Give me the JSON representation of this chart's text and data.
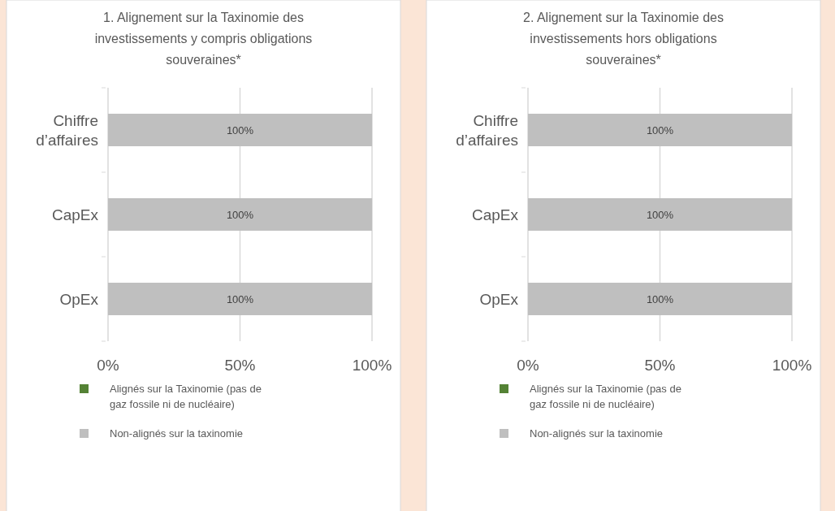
{
  "chart_data": [
    {
      "type": "bar",
      "orientation": "horizontal",
      "stacked": true,
      "title": "1. Alignement sur la Taxinomie des investissements y compris obligations souveraines*",
      "categories": [
        "Chiffre d’affaires",
        "CapEx",
        "OpEx"
      ],
      "series": [
        {
          "name": "Alignés sur la Taxinomie (pas de gaz fossile ni de nucléaire)",
          "color": "#548235",
          "values": [
            0,
            0,
            0
          ],
          "value_labels": [
            null,
            null,
            null
          ]
        },
        {
          "name": "Non-alignés sur la taxinomie",
          "color": "#bfbfbf",
          "values": [
            100,
            100,
            100
          ],
          "value_labels": [
            "100%",
            "100%",
            "100%"
          ]
        }
      ],
      "xlim": [
        0,
        100
      ],
      "xticks": [
        {
          "value": 0,
          "label": "0%"
        },
        {
          "value": 50,
          "label": "50%"
        },
        {
          "value": 100,
          "label": "100%"
        }
      ],
      "grid": "x",
      "legend": "bottom"
    },
    {
      "type": "bar",
      "orientation": "horizontal",
      "stacked": true,
      "title": "2. Alignement sur la Taxinomie des investissements hors obligations souveraines*",
      "categories": [
        "Chiffre d’affaires",
        "CapEx",
        "OpEx"
      ],
      "series": [
        {
          "name": "Alignés sur la Taxinomie (pas de gaz fossile ni de nucléaire)",
          "color": "#548235",
          "values": [
            0,
            0,
            0
          ],
          "value_labels": [
            null,
            null,
            null
          ]
        },
        {
          "name": "Non-alignés sur la taxinomie",
          "color": "#bfbfbf",
          "values": [
            100,
            100,
            100
          ],
          "value_labels": [
            "100%",
            "100%",
            "100%"
          ]
        }
      ],
      "xlim": [
        0,
        100
      ],
      "xticks": [
        {
          "value": 0,
          "label": "0%"
        },
        {
          "value": 50,
          "label": "50%"
        },
        {
          "value": 100,
          "label": "100%"
        }
      ],
      "grid": "x",
      "legend": "bottom"
    }
  ]
}
